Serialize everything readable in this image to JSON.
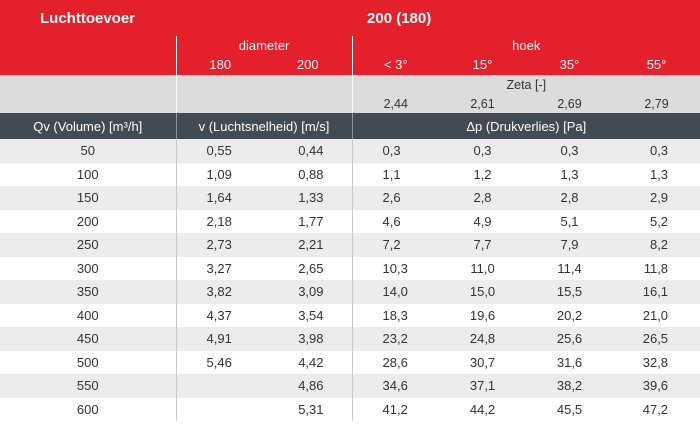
{
  "table": {
    "title": "Luchttoevoer",
    "size": "200 (180)",
    "diameter_label": "diameter",
    "diameters": [
      "180",
      "200"
    ],
    "hoek_label": "hoek",
    "angles": [
      "< 3°",
      "15°",
      "35°",
      "55°"
    ],
    "zeta_label": "Zeta [-]",
    "zeta_values": [
      "2,44",
      "2,61",
      "2,69",
      "2,79"
    ],
    "col_headers": [
      "Qv (Volume) [m³/h]",
      "v (Luchtsnelheid) [m/s]",
      "Δp (Drukverlies) [Pa]"
    ],
    "rows": [
      {
        "qv": "50",
        "v180": "0,55",
        "v200": "0,44",
        "p3": "0,3",
        "p15": "0,3",
        "p35": "0,3",
        "p55": "0,3"
      },
      {
        "qv": "100",
        "v180": "1,09",
        "v200": "0,88",
        "p3": "1,1",
        "p15": "1,2",
        "p35": "1,3",
        "p55": "1,3"
      },
      {
        "qv": "150",
        "v180": "1,64",
        "v200": "1,33",
        "p3": "2,6",
        "p15": "2,8",
        "p35": "2,8",
        "p55": "2,9"
      },
      {
        "qv": "200",
        "v180": "2,18",
        "v200": "1,77",
        "p3": "4,6",
        "p15": "4,9",
        "p35": "5,1",
        "p55": "5,2"
      },
      {
        "qv": "250",
        "v180": "2,73",
        "v200": "2,21",
        "p3": "7,2",
        "p15": "7,7",
        "p35": "7,9",
        "p55": "8,2"
      },
      {
        "qv": "300",
        "v180": "3,27",
        "v200": "2,65",
        "p3": "10,3",
        "p15": "11,0",
        "p35": "11,4",
        "p55": "11,8"
      },
      {
        "qv": "350",
        "v180": "3,82",
        "v200": "3,09",
        "p3": "14,0",
        "p15": "15,0",
        "p35": "15,5",
        "p55": "16,1"
      },
      {
        "qv": "400",
        "v180": "4,37",
        "v200": "3,54",
        "p3": "18,3",
        "p15": "19,6",
        "p35": "20,2",
        "p55": "21,0"
      },
      {
        "qv": "450",
        "v180": "4,91",
        "v200": "3,98",
        "p3": "23,2",
        "p15": "24,8",
        "p35": "25,6",
        "p55": "26,5"
      },
      {
        "qv": "500",
        "v180": "5,46",
        "v200": "4,42",
        "p3": "28,6",
        "p15": "30,7",
        "p35": "31,6",
        "p55": "32,8"
      },
      {
        "qv": "550",
        "v180": "",
        "v200": "4,86",
        "p3": "34,6",
        "p15": "37,1",
        "p35": "38,2",
        "p55": "39,6"
      },
      {
        "qv": "600",
        "v180": "",
        "v200": "5,31",
        "p3": "41,2",
        "p15": "44,2",
        "p35": "45,5",
        "p55": "47,2"
      }
    ]
  }
}
